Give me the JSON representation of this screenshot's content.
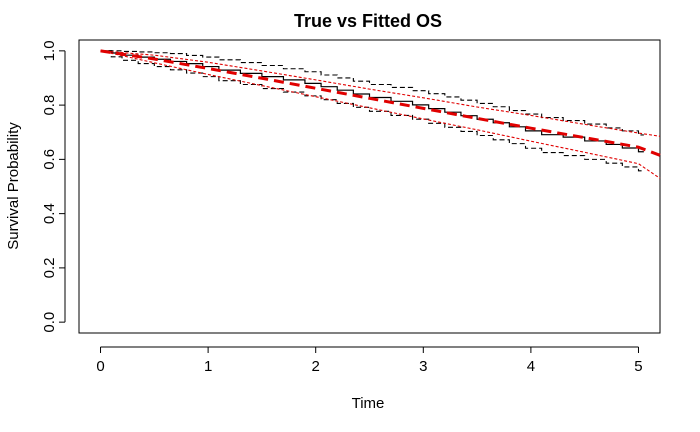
{
  "chart_data": {
    "type": "line",
    "title": "True vs Fitted OS",
    "xlabel": "Time",
    "ylabel": "Survival Probability",
    "xlim": [
      -0.2,
      5.2
    ],
    "ylim": [
      -0.04,
      1.04
    ],
    "xticks": [
      0,
      1,
      2,
      3,
      4,
      5
    ],
    "yticks": [
      0.0,
      0.2,
      0.4,
      0.6,
      0.8,
      1.0
    ],
    "xtick_labels": [
      "0",
      "1",
      "2",
      "3",
      "4",
      "5"
    ],
    "ytick_labels": [
      "0.0",
      "0.2",
      "0.4",
      "0.6",
      "0.8",
      "1.0"
    ],
    "grid": false,
    "series": [
      {
        "style": "step",
        "color": "#000000",
        "line": "solid",
        "x": [
          0,
          0.1,
          0.2,
          0.35,
          0.5,
          0.65,
          0.8,
          0.95,
          1.1,
          1.3,
          1.5,
          1.7,
          1.9,
          2.05,
          2.2,
          2.35,
          2.5,
          2.7,
          2.9,
          3.05,
          3.2,
          3.35,
          3.5,
          3.65,
          3.8,
          3.95,
          4.1,
          4.3,
          4.5,
          4.7,
          4.85,
          5.0
        ],
        "y": [
          1.0,
          0.992,
          0.984,
          0.977,
          0.969,
          0.961,
          0.953,
          0.942,
          0.929,
          0.917,
          0.905,
          0.893,
          0.88,
          0.868,
          0.855,
          0.841,
          0.828,
          0.814,
          0.801,
          0.787,
          0.774,
          0.761,
          0.748,
          0.735,
          0.72,
          0.705,
          0.691,
          0.682,
          0.668,
          0.655,
          0.642,
          0.628
        ]
      },
      {
        "style": "step",
        "color": "#000000",
        "line": "dashed",
        "x": [
          0,
          0.1,
          0.2,
          0.35,
          0.5,
          0.65,
          0.8,
          0.95,
          1.1,
          1.3,
          1.5,
          1.7,
          1.9,
          2.05,
          2.2,
          2.35,
          2.5,
          2.7,
          2.9,
          3.05,
          3.2,
          3.35,
          3.5,
          3.65,
          3.8,
          3.95,
          4.1,
          4.3,
          4.5,
          4.7,
          4.85,
          5.0
        ],
        "y": [
          1.0,
          1.0,
          0.998,
          0.996,
          0.993,
          0.99,
          0.983,
          0.977,
          0.967,
          0.957,
          0.946,
          0.934,
          0.923,
          0.911,
          0.9,
          0.888,
          0.876,
          0.865,
          0.853,
          0.842,
          0.83,
          0.818,
          0.806,
          0.794,
          0.78,
          0.767,
          0.754,
          0.743,
          0.73,
          0.716,
          0.705,
          0.69
        ]
      },
      {
        "style": "step",
        "color": "#000000",
        "line": "dashed",
        "x": [
          0,
          0.1,
          0.2,
          0.35,
          0.5,
          0.65,
          0.8,
          0.95,
          1.1,
          1.3,
          1.5,
          1.7,
          1.9,
          2.05,
          2.2,
          2.35,
          2.5,
          2.7,
          2.9,
          3.05,
          3.2,
          3.35,
          3.5,
          3.65,
          3.8,
          3.95,
          4.1,
          4.3,
          4.5,
          4.7,
          4.85,
          5.0
        ],
        "y": [
          1.0,
          0.978,
          0.965,
          0.953,
          0.942,
          0.93,
          0.918,
          0.905,
          0.89,
          0.876,
          0.861,
          0.848,
          0.834,
          0.82,
          0.806,
          0.792,
          0.777,
          0.762,
          0.748,
          0.733,
          0.718,
          0.703,
          0.688,
          0.672,
          0.658,
          0.641,
          0.625,
          0.614,
          0.6,
          0.586,
          0.572,
          0.558
        ]
      },
      {
        "style": "line",
        "color": "#e00000",
        "line": "thick-dashed",
        "x": [
          0,
          0.5,
          1.0,
          1.5,
          2.0,
          2.5,
          3.0,
          3.5,
          4.0,
          4.5,
          5.0,
          5.2
        ],
        "y": [
          1.0,
          0.97,
          0.935,
          0.899,
          0.862,
          0.825,
          0.788,
          0.751,
          0.715,
          0.68,
          0.645,
          0.615
        ]
      },
      {
        "style": "line",
        "color": "#e00000",
        "line": "dotted",
        "x": [
          0,
          0.5,
          1.0,
          1.5,
          2.0,
          2.5,
          3.0,
          3.5,
          4.0,
          4.5,
          5.0,
          5.2
        ],
        "y": [
          1.0,
          0.984,
          0.958,
          0.926,
          0.893,
          0.859,
          0.827,
          0.793,
          0.762,
          0.729,
          0.697,
          0.685
        ]
      },
      {
        "style": "line",
        "color": "#e00000",
        "line": "dotted",
        "x": [
          0,
          0.5,
          1.0,
          1.5,
          2.0,
          2.5,
          3.0,
          3.5,
          4.0,
          4.5,
          5.0,
          5.2
        ],
        "y": [
          1.0,
          0.956,
          0.913,
          0.872,
          0.831,
          0.79,
          0.749,
          0.709,
          0.667,
          0.626,
          0.584,
          0.53
        ]
      }
    ]
  }
}
